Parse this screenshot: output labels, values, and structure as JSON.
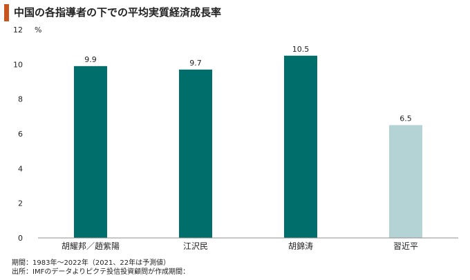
{
  "header": {
    "title": "中国の各指導者の下での平均実質経済成長率",
    "accent_color": "#c8541e"
  },
  "notes": {
    "period": "期間：1983年～2022年（2021、22年は予測値）",
    "source": "出所：IMFのデータよりピクテ投信投資顧問が作成期間："
  },
  "chart_data": {
    "type": "bar",
    "title": "中国の各指導者の下での平均実質経済成長率",
    "xlabel": "",
    "ylabel": "",
    "unit_label": "%",
    "categories": [
      "胡耀邦／趙紫陽",
      "江沢民",
      "胡錦涛",
      "習近平"
    ],
    "values": [
      9.9,
      9.7,
      10.5,
      6.5
    ],
    "value_labels": [
      "9.9",
      "9.7",
      "10.5",
      "6.5"
    ],
    "bar_colors": [
      "#006e6b",
      "#006e6b",
      "#006e6b",
      "#b3d3d4"
    ],
    "ylim": [
      0,
      12
    ],
    "yticks": [
      0,
      2,
      4,
      6,
      8,
      10,
      12
    ],
    "ytick_labels": [
      "0",
      "2",
      "4",
      "6",
      "8",
      "10",
      "12"
    ],
    "grid": false,
    "axis_color": "#8c8c8c"
  }
}
